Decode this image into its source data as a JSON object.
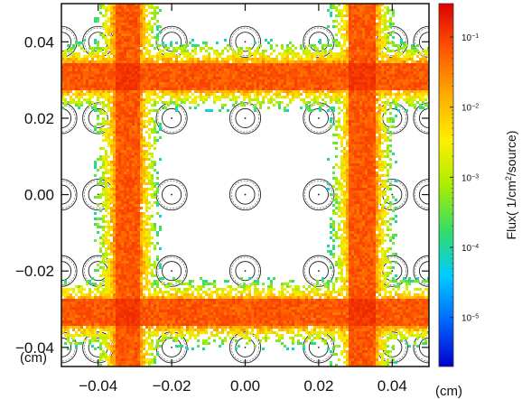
{
  "chart_data": {
    "type": "heatmap",
    "title": "",
    "x_unit": "(cm)",
    "y_unit": "(cm)",
    "xlim": [
      -0.05,
      0.05
    ],
    "ylim": [
      -0.045,
      0.05
    ],
    "x_ticks": [
      {
        "value": -0.04,
        "label": "−0.04"
      },
      {
        "value": -0.02,
        "label": "−0.02"
      },
      {
        "value": 0.0,
        "label": "0.00"
      },
      {
        "value": 0.02,
        "label": "0.02"
      },
      {
        "value": 0.04,
        "label": "0.04"
      }
    ],
    "y_ticks": [
      {
        "value": 0.04,
        "label": "0.04"
      },
      {
        "value": 0.02,
        "label": "0.02"
      },
      {
        "value": 0.0,
        "label": "0.00"
      },
      {
        "value": -0.02,
        "label": "−0.02"
      },
      {
        "value": -0.04,
        "label": "−0.04"
      }
    ],
    "colorbar": {
      "label_parts": {
        "pre": "Flux( 1/cm",
        "sup": "2",
        "post": "/source)"
      },
      "scale": "log",
      "range": [
        2e-06,
        0.3
      ],
      "ticks": [
        {
          "exp": -1,
          "base": "10",
          "sup": "−1"
        },
        {
          "exp": -2,
          "base": "10",
          "sup": "−2"
        },
        {
          "exp": -3,
          "base": "10",
          "sup": "−3"
        },
        {
          "exp": -4,
          "base": "10",
          "sup": "−4"
        },
        {
          "exp": -5,
          "base": "10",
          "sup": "−5"
        }
      ],
      "colors": [
        "#0000cc",
        "#0066ff",
        "#00ccff",
        "#33dd66",
        "#aaee00",
        "#ffee00",
        "#ffaa00",
        "#ff5500",
        "#dd0000"
      ]
    },
    "channels": {
      "x_centers": [
        -0.032,
        0.032
      ],
      "y_centers": [
        0.031,
        -0.031
      ],
      "half_width": 0.0035,
      "halo_width": 0.0075,
      "peak_flux": 0.1
    },
    "pin_grid": {
      "centers": [
        -0.04,
        -0.02,
        0.0,
        0.02,
        0.04
      ],
      "centers_y": [
        0.04,
        0.02,
        0.0,
        -0.02,
        -0.04
      ],
      "spacing": 0.01,
      "outer_radius": 0.0042,
      "inner_radius": 0.0026
    }
  }
}
